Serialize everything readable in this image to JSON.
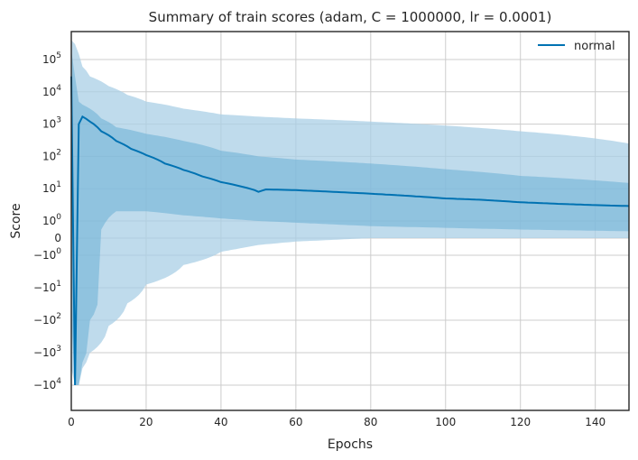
{
  "chart_data": {
    "type": "line",
    "title": "Summary of train scores (adam, C = 1000000, lr = 0.0001)",
    "xlabel": "Epochs",
    "ylabel": "Score",
    "xlim": [
      0,
      149
    ],
    "y_scale": "symlog",
    "x_ticks": [
      0,
      20,
      40,
      60,
      80,
      100,
      120,
      140
    ],
    "y_ticks": [
      {
        "value": 100000,
        "label": "10",
        "exp": "5"
      },
      {
        "value": 10000,
        "label": "10",
        "exp": "4"
      },
      {
        "value": 1000,
        "label": "10",
        "exp": "3"
      },
      {
        "value": 100,
        "label": "10",
        "exp": "2"
      },
      {
        "value": 10,
        "label": "10",
        "exp": "1"
      },
      {
        "value": 1,
        "label": "10",
        "exp": "0"
      },
      {
        "value": 0,
        "label": "0",
        "exp": ""
      },
      {
        "value": -1,
        "label": "−10",
        "exp": "0"
      },
      {
        "value": -10,
        "label": "−10",
        "exp": "1"
      },
      {
        "value": -100,
        "label": "−10",
        "exp": "2"
      },
      {
        "value": -1000,
        "label": "−10",
        "exp": "3"
      },
      {
        "value": -10000,
        "label": "−10",
        "exp": "4"
      }
    ],
    "grid": true,
    "legend_position": "top-right",
    "series": [
      {
        "name": "normal",
        "color": "#0072b2",
        "band_color": "#a9cfe6",
        "mean": [
          [
            0,
            30000
          ],
          [
            1,
            -10000
          ],
          [
            2,
            1000
          ],
          [
            3,
            1700
          ],
          [
            5,
            1200
          ],
          [
            8,
            600
          ],
          [
            12,
            300
          ],
          [
            16,
            170
          ],
          [
            20,
            110
          ],
          [
            25,
            60
          ],
          [
            30,
            38
          ],
          [
            35,
            24
          ],
          [
            40,
            16
          ],
          [
            45,
            12
          ],
          [
            49,
            9
          ],
          [
            50,
            8
          ],
          [
            52,
            9.5
          ],
          [
            60,
            9
          ],
          [
            70,
            8
          ],
          [
            80,
            7
          ],
          [
            90,
            6
          ],
          [
            100,
            5
          ],
          [
            110,
            4.5
          ],
          [
            120,
            3.8
          ],
          [
            130,
            3.4
          ],
          [
            140,
            3.1
          ],
          [
            149,
            2.9
          ]
        ],
        "std_inner": [
          [
            0,
            200000,
            -100
          ],
          [
            1,
            30000,
            -10000
          ],
          [
            2,
            5000,
            -10000
          ],
          [
            3,
            4000,
            -2000
          ],
          [
            5,
            3000,
            -100
          ],
          [
            8,
            1500,
            0.5
          ],
          [
            12,
            800,
            2
          ],
          [
            20,
            500,
            2
          ],
          [
            30,
            300,
            1.5
          ],
          [
            40,
            150,
            1.2
          ],
          [
            50,
            100,
            1
          ],
          [
            60,
            80,
            0.9
          ],
          [
            80,
            60,
            0.7
          ],
          [
            100,
            40,
            0.6
          ],
          [
            120,
            25,
            0.5
          ],
          [
            149,
            15,
            0.4
          ]
        ],
        "std_outer": [
          [
            0,
            400000,
            -3000
          ],
          [
            1,
            300000,
            -10000
          ],
          [
            2,
            150000,
            -10000
          ],
          [
            3,
            60000,
            -3000
          ],
          [
            5,
            30000,
            -1000
          ],
          [
            10,
            15000,
            -150
          ],
          [
            15,
            8000,
            -30
          ],
          [
            20,
            5000,
            -8
          ],
          [
            30,
            3000,
            -2
          ],
          [
            40,
            2000,
            -0.8
          ],
          [
            50,
            1700,
            -0.4
          ],
          [
            60,
            1500,
            -0.2
          ],
          [
            80,
            1200,
            0
          ],
          [
            100,
            900,
            0
          ],
          [
            120,
            600,
            0
          ],
          [
            149,
            250,
            0
          ]
        ]
      }
    ]
  }
}
